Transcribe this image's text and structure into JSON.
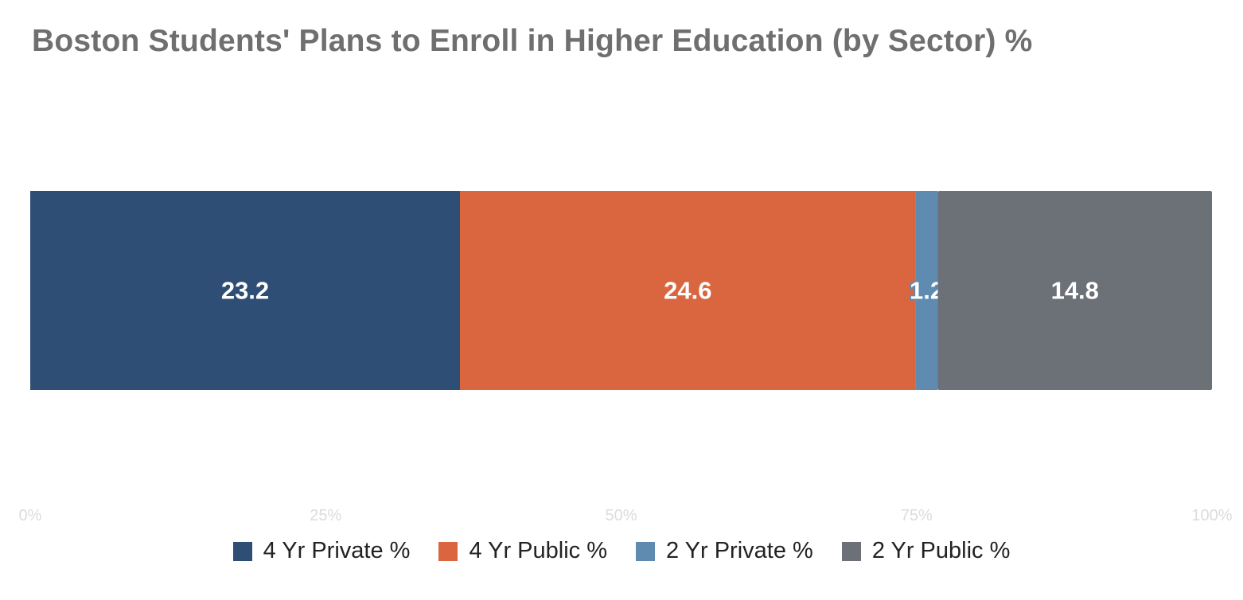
{
  "chart_data": {
    "type": "bar",
    "orientation": "horizontal",
    "stacking": "percent",
    "title": "Boston Students' Plans to Enroll in Higher Education (by Sector) %",
    "categories": [
      ""
    ],
    "series": [
      {
        "name": "4 Yr Private %",
        "values": [
          23.2
        ],
        "color": "#2e4e75"
      },
      {
        "name": "4 Yr Public %",
        "values": [
          24.6
        ],
        "color": "#d9663e"
      },
      {
        "name": "2 Yr Private %",
        "values": [
          1.2
        ],
        "color": "#5f8bb0"
      },
      {
        "name": "2 Yr Public %",
        "values": [
          14.8
        ],
        "color": "#6c7077"
      }
    ],
    "xaxis": {
      "ticks": [
        "0%",
        "25%",
        "50%",
        "75%",
        "100%"
      ],
      "range": [
        0,
        100
      ]
    },
    "grid": false,
    "legend_position": "bottom"
  }
}
